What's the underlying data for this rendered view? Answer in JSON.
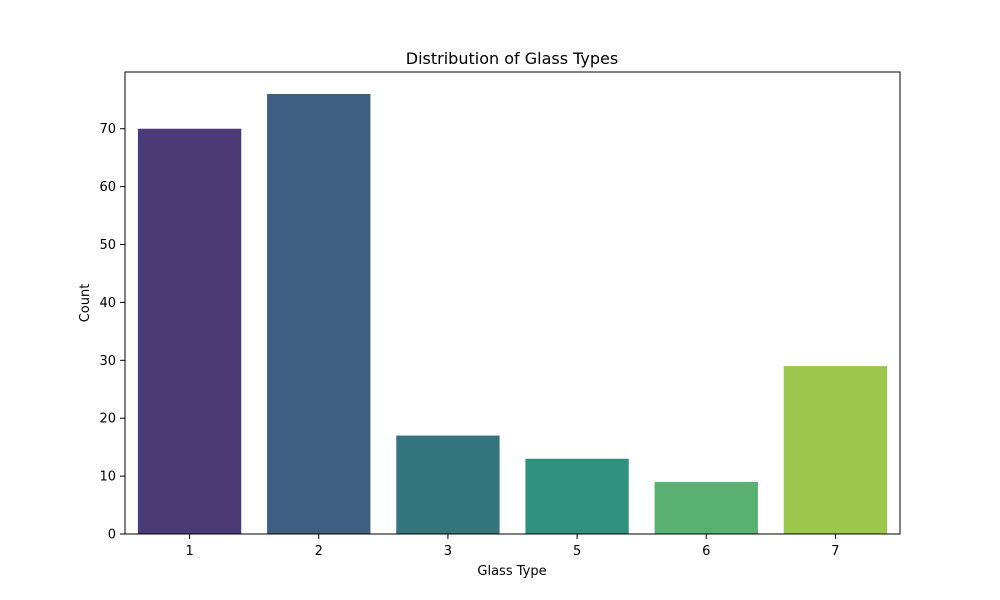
{
  "chart_data": {
    "type": "bar",
    "title": "Distribution of Glass Types",
    "xlabel": "Glass Type",
    "ylabel": "Count",
    "categories": [
      "1",
      "2",
      "3",
      "5",
      "6",
      "7"
    ],
    "values": [
      70,
      76,
      17,
      13,
      9,
      29
    ],
    "colors": [
      "#4a3b77",
      "#3f5f82",
      "#34757e",
      "#30927e",
      "#58b173",
      "#9ac74c"
    ],
    "ylim": [
      0,
      79.8
    ],
    "yticks": [
      0,
      10,
      20,
      30,
      40,
      50,
      60,
      70
    ],
    "grid": false,
    "legend": "none"
  }
}
